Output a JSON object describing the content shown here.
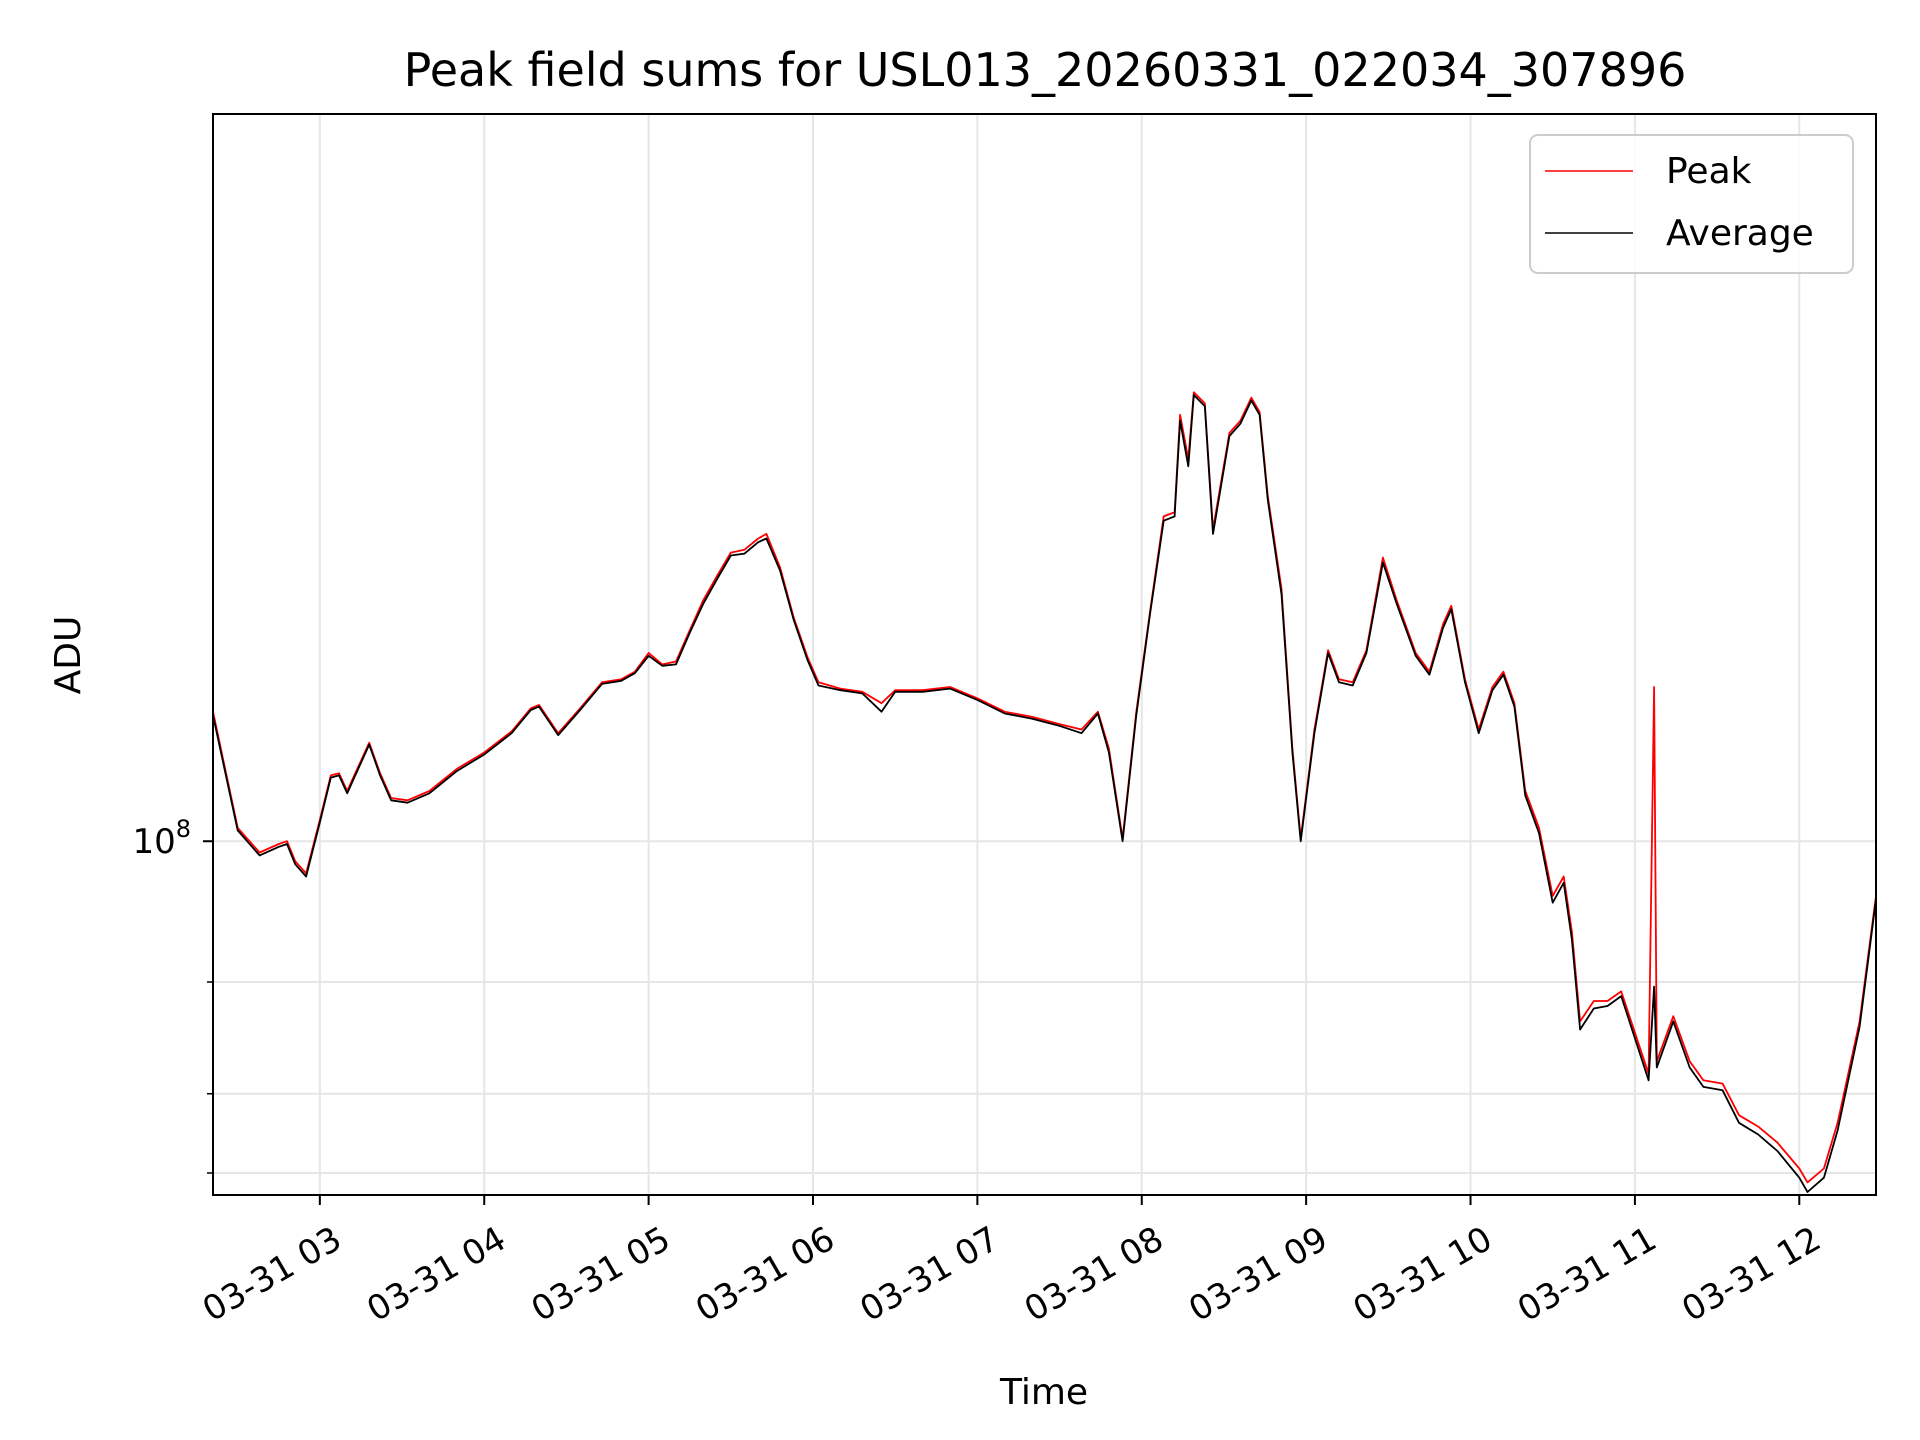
{
  "chart_data": {
    "type": "line",
    "title": "Peak field sums for USL013_20260331_022034_307896",
    "xlabel": "Time",
    "ylabel": "ADU",
    "y_scale": "log",
    "xlim": [
      "2026-03-31T02:21:00",
      "2026-03-31T12:28:00"
    ],
    "ylim": [
      27700000.0,
      1400000000.0
    ],
    "x_ticks": [
      "03-31 03",
      "03-31 04",
      "03-31 05",
      "03-31 06",
      "03-31 07",
      "03-31 08",
      "03-31 09",
      "03-31 10",
      "03-31 11",
      "03-31 12"
    ],
    "y_ticks": [
      "10^8"
    ],
    "grid": true,
    "legend_position": "top-right",
    "colors": {
      "Peak": "#ff0000",
      "Average": "#000000"
    },
    "series": [
      {
        "name": "Peak",
        "color": "#ff0000",
        "points": [
          [
            "2026-03-31T02:21:00",
            160000000.0
          ],
          [
            "2026-03-31T02:30:00",
            105000000.0
          ],
          [
            "2026-03-31T02:38:00",
            96000000.0
          ],
          [
            "2026-03-31T02:45:00",
            99000000.0
          ],
          [
            "2026-03-31T02:48:00",
            100000000.0
          ],
          [
            "2026-03-31T02:51:00",
            93000000.0
          ],
          [
            "2026-03-31T02:55:00",
            89000000.0
          ],
          [
            "2026-03-31T03:00:00",
            108000000.0
          ],
          [
            "2026-03-31T03:04:00",
            127000000.0
          ],
          [
            "2026-03-31T03:07:00",
            128000000.0
          ],
          [
            "2026-03-31T03:10:00",
            120000000.0
          ],
          [
            "2026-03-31T03:14:00",
            131000000.0
          ],
          [
            "2026-03-31T03:18:00",
            143000000.0
          ],
          [
            "2026-03-31T03:22:00",
            128000000.0
          ],
          [
            "2026-03-31T03:26:00",
            117000000.0
          ],
          [
            "2026-03-31T03:32:00",
            116000000.0
          ],
          [
            "2026-03-31T03:40:00",
            120000000.0
          ],
          [
            "2026-03-31T03:50:00",
            130000000.0
          ],
          [
            "2026-03-31T04:00:00",
            138000000.0
          ],
          [
            "2026-03-31T04:10:00",
            149000000.0
          ],
          [
            "2026-03-31T04:17:00",
            162000000.0
          ],
          [
            "2026-03-31T04:20:00",
            164000000.0
          ],
          [
            "2026-03-31T04:27:00",
            148000000.0
          ],
          [
            "2026-03-31T04:35:00",
            162000000.0
          ],
          [
            "2026-03-31T04:43:00",
            178000000.0
          ],
          [
            "2026-03-31T04:50:00",
            180000000.0
          ],
          [
            "2026-03-31T04:55:00",
            185000000.0
          ],
          [
            "2026-03-31T05:00:00",
            198000000.0
          ],
          [
            "2026-03-31T05:05:00",
            190000000.0
          ],
          [
            "2026-03-31T05:10:00",
            192000000.0
          ],
          [
            "2026-03-31T05:15:00",
            215000000.0
          ],
          [
            "2026-03-31T05:20:00",
            240000000.0
          ],
          [
            "2026-03-31T05:25:00",
            262000000.0
          ],
          [
            "2026-03-31T05:30:00",
            285000000.0
          ],
          [
            "2026-03-31T05:35:00",
            288000000.0
          ],
          [
            "2026-03-31T05:40:00",
            300000000.0
          ],
          [
            "2026-03-31T05:43:00",
            305000000.0
          ],
          [
            "2026-03-31T05:48:00",
            270000000.0
          ],
          [
            "2026-03-31T05:53:00",
            225000000.0
          ],
          [
            "2026-03-31T05:58:00",
            195000000.0
          ],
          [
            "2026-03-31T06:02:00",
            178000000.0
          ],
          [
            "2026-03-31T06:10:00",
            174000000.0
          ],
          [
            "2026-03-31T06:18:00",
            172000000.0
          ],
          [
            "2026-03-31T06:25:00",
            165000000.0
          ],
          [
            "2026-03-31T06:30:00",
            173000000.0
          ],
          [
            "2026-03-31T06:40:00",
            173000000.0
          ],
          [
            "2026-03-31T06:50:00",
            175000000.0
          ],
          [
            "2026-03-31T07:00:00",
            168000000.0
          ],
          [
            "2026-03-31T07:10:00",
            160000000.0
          ],
          [
            "2026-03-31T07:20:00",
            157000000.0
          ],
          [
            "2026-03-31T07:30:00",
            153000000.0
          ],
          [
            "2026-03-31T07:38:00",
            150000000.0
          ],
          [
            "2026-03-31T07:44:00",
            160000000.0
          ],
          [
            "2026-03-31T07:48:00",
            140000000.0
          ],
          [
            "2026-03-31T07:53:00",
            101000000.0
          ],
          [
            "2026-03-31T07:58:00",
            160000000.0
          ],
          [
            "2026-03-31T08:03:00",
            230000000.0
          ],
          [
            "2026-03-31T08:08:00",
            325000000.0
          ],
          [
            "2026-03-31T08:12:00",
            330000000.0
          ],
          [
            "2026-03-31T08:14:00",
            470000000.0
          ],
          [
            "2026-03-31T08:17:00",
            400000000.0
          ],
          [
            "2026-03-31T08:19:00",
            510000000.0
          ],
          [
            "2026-03-31T08:23:00",
            490000000.0
          ],
          [
            "2026-03-31T08:26:00",
            310000000.0
          ],
          [
            "2026-03-31T08:32:00",
            440000000.0
          ],
          [
            "2026-03-31T08:36:00",
            460000000.0
          ],
          [
            "2026-03-31T08:40:00",
            500000000.0
          ],
          [
            "2026-03-31T08:43:00",
            475000000.0
          ],
          [
            "2026-03-31T08:46:00",
            350000000.0
          ],
          [
            "2026-03-31T08:51:00",
            250000000.0
          ],
          [
            "2026-03-31T08:55:00",
            140000000.0
          ],
          [
            "2026-03-31T08:58:00",
            101000000.0
          ],
          [
            "2026-03-31T09:03:00",
            150000000.0
          ],
          [
            "2026-03-31T09:08:00",
            200000000.0
          ],
          [
            "2026-03-31T09:12:00",
            180000000.0
          ],
          [
            "2026-03-31T09:17:00",
            178000000.0
          ],
          [
            "2026-03-31T09:22:00",
            200000000.0
          ],
          [
            "2026-03-31T09:28:00",
            280000000.0
          ],
          [
            "2026-03-31T09:33:00",
            240000000.0
          ],
          [
            "2026-03-31T09:40:00",
            198000000.0
          ],
          [
            "2026-03-31T09:45:00",
            185000000.0
          ],
          [
            "2026-03-31T09:50:00",
            220000000.0
          ],
          [
            "2026-03-31T09:53:00",
            235000000.0
          ],
          [
            "2026-03-31T09:58:00",
            180000000.0
          ],
          [
            "2026-03-31T10:03:00",
            150000000.0
          ],
          [
            "2026-03-31T10:08:00",
            175000000.0
          ],
          [
            "2026-03-31T10:12:00",
            185000000.0
          ],
          [
            "2026-03-31T10:16:00",
            165000000.0
          ],
          [
            "2026-03-31T10:20:00",
            120000000.0
          ],
          [
            "2026-03-31T10:25:00",
            105000000.0
          ],
          [
            "2026-03-31T10:30:00",
            82000000.0
          ],
          [
            "2026-03-31T10:34:00",
            88000000.0
          ],
          [
            "2026-03-31T10:37:00",
            72000000.0
          ],
          [
            "2026-03-31T10:40:00",
            52000000.0
          ],
          [
            "2026-03-31T10:45:00",
            56000000.0
          ],
          [
            "2026-03-31T10:50:00",
            56000000.0
          ],
          [
            "2026-03-31T10:55:00",
            58000000.0
          ],
          [
            "2026-03-31T11:05:00",
            43000000.0
          ],
          [
            "2026-03-31T11:07:00",
            175000000.0
          ],
          [
            "2026-03-31T11:08:00",
            45000000.0
          ],
          [
            "2026-03-31T11:14:00",
            53000000.0
          ],
          [
            "2026-03-31T11:20:00",
            45000000.0
          ],
          [
            "2026-03-31T11:25:00",
            42000000.0
          ],
          [
            "2026-03-31T11:32:00",
            41500000.0
          ],
          [
            "2026-03-31T11:38:00",
            37000000.0
          ],
          [
            "2026-03-31T11:45:00",
            35500000.0
          ],
          [
            "2026-03-31T11:52:00",
            33500000.0
          ],
          [
            "2026-03-31T12:00:00",
            30500000.0
          ],
          [
            "2026-03-31T12:03:00",
            29000000.0
          ],
          [
            "2026-03-31T12:09:00",
            30500000.0
          ],
          [
            "2026-03-31T12:14:00",
            36000000.0
          ],
          [
            "2026-03-31T12:22:00",
            52000000.0
          ],
          [
            "2026-03-31T12:28:00",
            82000000.0
          ]
        ]
      },
      {
        "name": "Average",
        "color": "#000000",
        "points": [
          [
            "2026-03-31T02:21:00",
            158000000.0
          ],
          [
            "2026-03-31T02:30:00",
            104000000.0
          ],
          [
            "2026-03-31T02:38:00",
            95000000.0
          ],
          [
            "2026-03-31T02:45:00",
            98000000.0
          ],
          [
            "2026-03-31T02:48:00",
            99000000.0
          ],
          [
            "2026-03-31T02:51:00",
            92000000.0
          ],
          [
            "2026-03-31T02:55:00",
            88000000.0
          ],
          [
            "2026-03-31T03:00:00",
            107000000.0
          ],
          [
            "2026-03-31T03:04:00",
            126000000.0
          ],
          [
            "2026-03-31T03:07:00",
            127000000.0
          ],
          [
            "2026-03-31T03:10:00",
            119000000.0
          ],
          [
            "2026-03-31T03:14:00",
            130000000.0
          ],
          [
            "2026-03-31T03:18:00",
            142000000.0
          ],
          [
            "2026-03-31T03:22:00",
            127000000.0
          ],
          [
            "2026-03-31T03:26:00",
            116000000.0
          ],
          [
            "2026-03-31T03:32:00",
            115000000.0
          ],
          [
            "2026-03-31T03:40:00",
            119000000.0
          ],
          [
            "2026-03-31T03:50:00",
            129000000.0
          ],
          [
            "2026-03-31T04:00:00",
            137000000.0
          ],
          [
            "2026-03-31T04:10:00",
            148000000.0
          ],
          [
            "2026-03-31T04:17:00",
            161000000.0
          ],
          [
            "2026-03-31T04:20:00",
            163000000.0
          ],
          [
            "2026-03-31T04:27:00",
            147000000.0
          ],
          [
            "2026-03-31T04:35:00",
            161000000.0
          ],
          [
            "2026-03-31T04:43:00",
            177000000.0
          ],
          [
            "2026-03-31T04:50:00",
            179000000.0
          ],
          [
            "2026-03-31T04:55:00",
            184000000.0
          ],
          [
            "2026-03-31T05:00:00",
            196000000.0
          ],
          [
            "2026-03-31T05:05:00",
            189000000.0
          ],
          [
            "2026-03-31T05:10:00",
            190000000.0
          ],
          [
            "2026-03-31T05:15:00",
            213000000.0
          ],
          [
            "2026-03-31T05:20:00",
            237000000.0
          ],
          [
            "2026-03-31T05:25:00",
            259000000.0
          ],
          [
            "2026-03-31T05:30:00",
            282000000.0
          ],
          [
            "2026-03-31T05:35:00",
            284000000.0
          ],
          [
            "2026-03-31T05:40:00",
            296000000.0
          ],
          [
            "2026-03-31T05:43:00",
            300000000.0
          ],
          [
            "2026-03-31T05:48:00",
            267000000.0
          ],
          [
            "2026-03-31T05:53:00",
            223000000.0
          ],
          [
            "2026-03-31T05:58:00",
            193000000.0
          ],
          [
            "2026-03-31T06:02:00",
            176000000.0
          ],
          [
            "2026-03-31T06:10:00",
            173000000.0
          ],
          [
            "2026-03-31T06:18:00",
            171000000.0
          ],
          [
            "2026-03-31T06:25:00",
            160000000.0
          ],
          [
            "2026-03-31T06:30:00",
            172000000.0
          ],
          [
            "2026-03-31T06:40:00",
            172000000.0
          ],
          [
            "2026-03-31T06:50:00",
            174000000.0
          ],
          [
            "2026-03-31T07:00:00",
            167000000.0
          ],
          [
            "2026-03-31T07:10:00",
            159000000.0
          ],
          [
            "2026-03-31T07:20:00",
            156000000.0
          ],
          [
            "2026-03-31T07:30:00",
            152000000.0
          ],
          [
            "2026-03-31T07:38:00",
            148000000.0
          ],
          [
            "2026-03-31T07:44:00",
            159000000.0
          ],
          [
            "2026-03-31T07:48:00",
            138000000.0
          ],
          [
            "2026-03-31T07:53:00",
            100000000.0
          ],
          [
            "2026-03-31T07:58:00",
            158000000.0
          ],
          [
            "2026-03-31T08:03:00",
            228000000.0
          ],
          [
            "2026-03-31T08:08:00",
            320000000.0
          ],
          [
            "2026-03-31T08:12:00",
            325000000.0
          ],
          [
            "2026-03-31T08:14:00",
            460000000.0
          ],
          [
            "2026-03-31T08:17:00",
            390000000.0
          ],
          [
            "2026-03-31T08:19:00",
            505000000.0
          ],
          [
            "2026-03-31T08:23:00",
            485000000.0
          ],
          [
            "2026-03-31T08:26:00",
            305000000.0
          ],
          [
            "2026-03-31T08:32:00",
            435000000.0
          ],
          [
            "2026-03-31T08:36:00",
            455000000.0
          ],
          [
            "2026-03-31T08:40:00",
            495000000.0
          ],
          [
            "2026-03-31T08:43:00",
            470000000.0
          ],
          [
            "2026-03-31T08:46:00",
            345000000.0
          ],
          [
            "2026-03-31T08:51:00",
            245000000.0
          ],
          [
            "2026-03-31T08:55:00",
            138000000.0
          ],
          [
            "2026-03-31T08:58:00",
            100000000.0
          ],
          [
            "2026-03-31T09:03:00",
            148000000.0
          ],
          [
            "2026-03-31T09:08:00",
            198000000.0
          ],
          [
            "2026-03-31T09:12:00",
            178000000.0
          ],
          [
            "2026-03-31T09:17:00",
            176000000.0
          ],
          [
            "2026-03-31T09:22:00",
            198000000.0
          ],
          [
            "2026-03-31T09:28:00",
            275000000.0
          ],
          [
            "2026-03-31T09:33:00",
            237000000.0
          ],
          [
            "2026-03-31T09:40:00",
            196000000.0
          ],
          [
            "2026-03-31T09:45:00",
            183000000.0
          ],
          [
            "2026-03-31T09:50:00",
            217000000.0
          ],
          [
            "2026-03-31T09:53:00",
            232000000.0
          ],
          [
            "2026-03-31T09:58:00",
            178000000.0
          ],
          [
            "2026-03-31T10:03:00",
            148000000.0
          ],
          [
            "2026-03-31T10:08:00",
            173000000.0
          ],
          [
            "2026-03-31T10:12:00",
            183000000.0
          ],
          [
            "2026-03-31T10:16:00",
            163000000.0
          ],
          [
            "2026-03-31T10:20:00",
            118000000.0
          ],
          [
            "2026-03-31T10:25:00",
            103000000.0
          ],
          [
            "2026-03-31T10:30:00",
            80000000.0
          ],
          [
            "2026-03-31T10:34:00",
            86000000.0
          ],
          [
            "2026-03-31T10:37:00",
            70000000.0
          ],
          [
            "2026-03-31T10:40:00",
            50500000.0
          ],
          [
            "2026-03-31T10:45:00",
            54500000.0
          ],
          [
            "2026-03-31T10:50:00",
            55000000.0
          ],
          [
            "2026-03-31T10:55:00",
            57000000.0
          ],
          [
            "2026-03-31T11:05:00",
            42000000.0
          ],
          [
            "2026-03-31T11:07:00",
            59000000.0
          ],
          [
            "2026-03-31T11:08:00",
            44000000.0
          ],
          [
            "2026-03-31T11:14:00",
            52000000.0
          ],
          [
            "2026-03-31T11:20:00",
            44000000.0
          ],
          [
            "2026-03-31T11:25:00",
            41000000.0
          ],
          [
            "2026-03-31T11:32:00",
            40500000.0
          ],
          [
            "2026-03-31T11:38:00",
            36000000.0
          ],
          [
            "2026-03-31T11:45:00",
            34500000.0
          ],
          [
            "2026-03-31T11:52:00",
            32500000.0
          ],
          [
            "2026-03-31T12:00:00",
            29500000.0
          ],
          [
            "2026-03-31T12:03:00",
            28000000.0
          ],
          [
            "2026-03-31T12:09:00",
            29500000.0
          ],
          [
            "2026-03-31T12:14:00",
            35000000.0
          ],
          [
            "2026-03-31T12:22:00",
            51000000.0
          ],
          [
            "2026-03-31T12:28:00",
            81000000.0
          ]
        ]
      }
    ]
  }
}
